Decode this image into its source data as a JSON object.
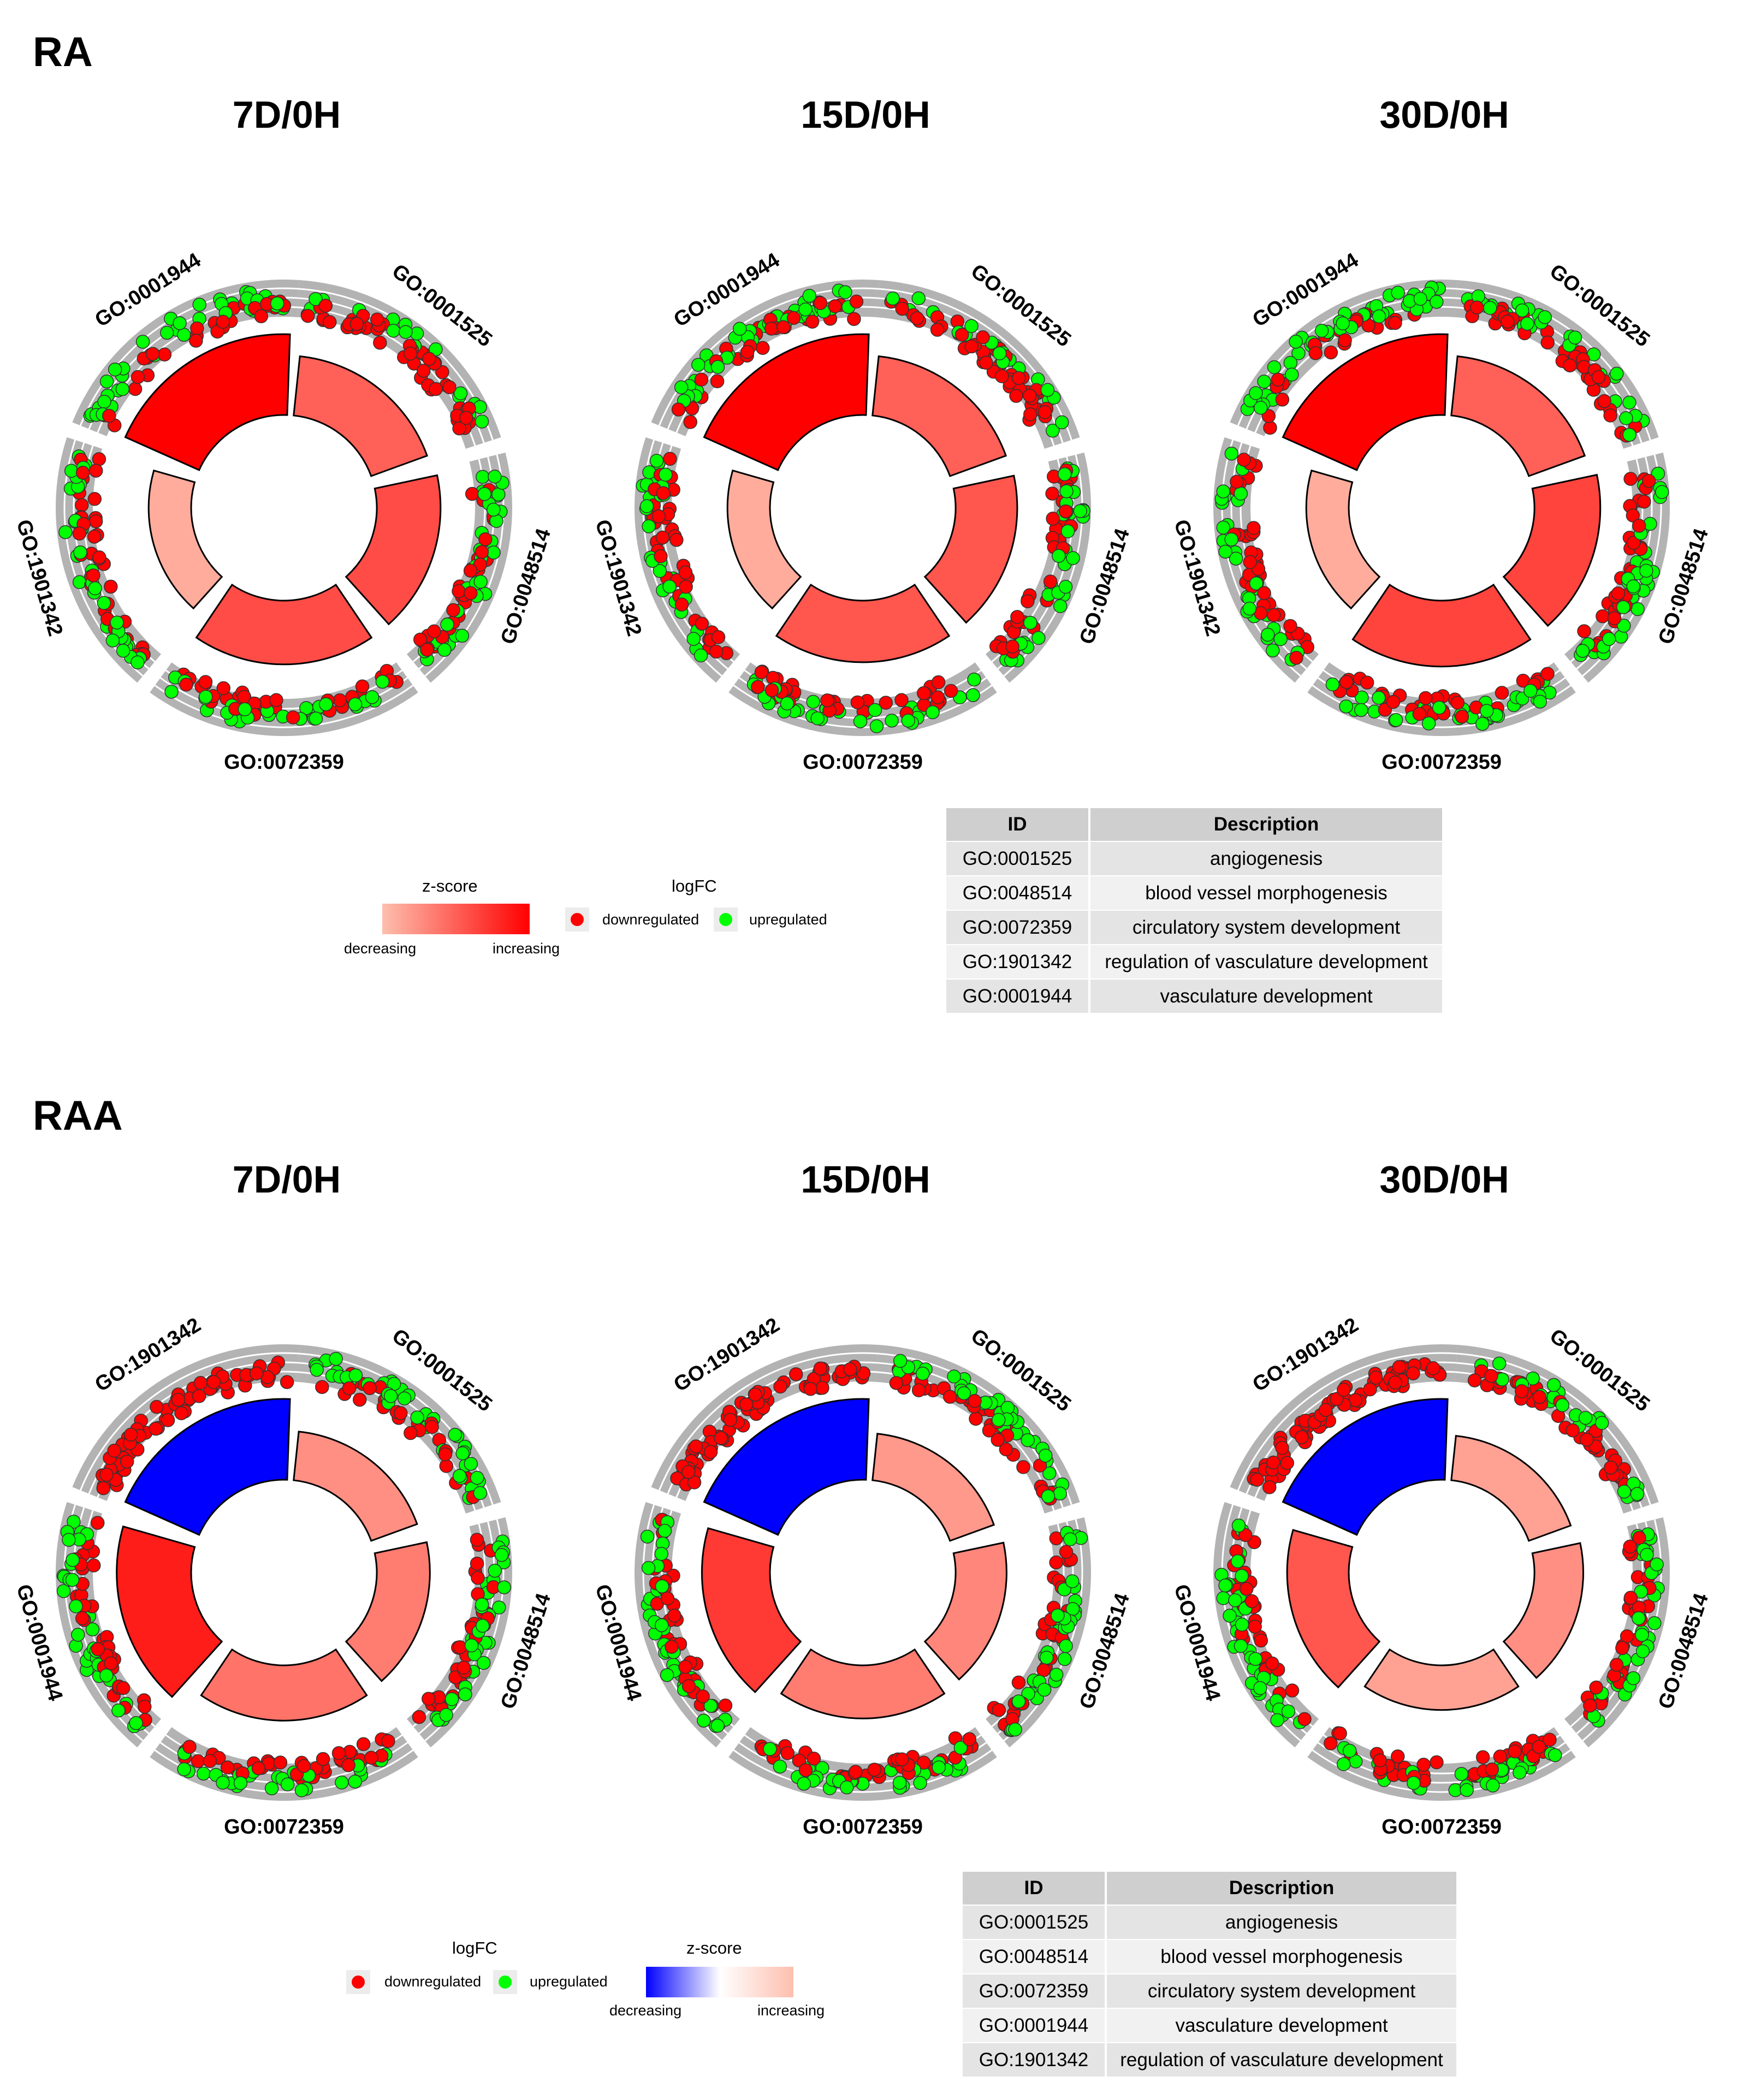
{
  "colors": {
    "down": "#ff0000",
    "up": "#00ff00",
    "track": "#b3b3b3",
    "zmax": "#ff0000",
    "zmid": "#fdbfae",
    "zmin": "#0000ff"
  },
  "sections": [
    {
      "label": "RA"
    },
    {
      "label": "RAA"
    }
  ],
  "legend_ra": {
    "zscore_title": "z-score",
    "decreasing": "decreasing",
    "increasing": "increasing",
    "logfc_title": "logFC",
    "down": "downregulated",
    "up": "upregulated"
  },
  "legend_raa": {
    "zscore_title": "z-score",
    "decreasing": "decreasing",
    "increasing": "increasing",
    "logfc_title": "logFC",
    "down": "downregulated",
    "up": "upregulated"
  },
  "table_ra": {
    "headers": [
      "ID",
      "Description"
    ],
    "rows": [
      [
        "GO:0001525",
        "angiogenesis"
      ],
      [
        "GO:0048514",
        "blood vessel morphogenesis"
      ],
      [
        "GO:0072359",
        "circulatory system development"
      ],
      [
        "GO:1901342",
        "regulation of vasculature development"
      ],
      [
        "GO:0001944",
        "vasculature development"
      ]
    ]
  },
  "table_raa": {
    "headers": [
      "ID",
      "Description"
    ],
    "rows": [
      [
        "GO:0001525",
        "angiogenesis"
      ],
      [
        "GO:0048514",
        "blood vessel morphogenesis"
      ],
      [
        "GO:0072359",
        "circulatory system development"
      ],
      [
        "GO:0001944",
        "vasculature development"
      ],
      [
        "GO:1901342",
        "regulation of vasculature development"
      ]
    ]
  },
  "chart_data": [
    {
      "type": "circle",
      "group": "RA",
      "title": "7D/0H",
      "terms": [
        "GO:0001525",
        "GO:0048514",
        "GO:0072359",
        "GO:1901342",
        "GO:0001944"
      ],
      "zscore": [
        0.5,
        0.6,
        0.6,
        0.1,
        1.0
      ],
      "up_fraction": [
        0.35,
        0.45,
        0.55,
        0.5,
        0.55
      ]
    },
    {
      "type": "circle",
      "group": "RA",
      "title": "15D/0H",
      "terms": [
        "GO:0001525",
        "GO:0048514",
        "GO:0072359",
        "GO:1901342",
        "GO:0001944"
      ],
      "zscore": [
        0.5,
        0.55,
        0.55,
        0.1,
        1.0
      ],
      "up_fraction": [
        0.35,
        0.4,
        0.5,
        0.45,
        0.5
      ]
    },
    {
      "type": "circle",
      "group": "RA",
      "title": "30D/0H",
      "terms": [
        "GO:0001525",
        "GO:0048514",
        "GO:0072359",
        "GO:1901342",
        "GO:0001944"
      ],
      "zscore": [
        0.5,
        0.65,
        0.65,
        0.1,
        1.0
      ],
      "up_fraction": [
        0.4,
        0.5,
        0.55,
        0.45,
        0.6
      ]
    },
    {
      "type": "circle",
      "group": "RAA",
      "title": "7D/0H",
      "terms": [
        "GO:0001525",
        "GO:0048514",
        "GO:0072359",
        "GO:0001944",
        "GO:1901342"
      ],
      "zscore": [
        0.25,
        0.35,
        0.4,
        0.85,
        -1.0
      ],
      "up_fraction": [
        0.55,
        0.5,
        0.5,
        0.5,
        0.0
      ]
    },
    {
      "type": "circle",
      "group": "RAA",
      "title": "15D/0H",
      "terms": [
        "GO:0001525",
        "GO:0048514",
        "GO:0072359",
        "GO:0001944",
        "GO:1901342"
      ],
      "zscore": [
        0.2,
        0.3,
        0.35,
        0.7,
        -1.0
      ],
      "up_fraction": [
        0.55,
        0.5,
        0.45,
        0.55,
        0.0
      ]
    },
    {
      "type": "circle",
      "group": "RAA",
      "title": "30D/0H",
      "terms": [
        "GO:0001525",
        "GO:0048514",
        "GO:0072359",
        "GO:0001944",
        "GO:1901342"
      ],
      "zscore": [
        0.15,
        0.25,
        0.15,
        0.55,
        -1.0
      ],
      "up_fraction": [
        0.5,
        0.55,
        0.5,
        0.55,
        0.0
      ]
    }
  ]
}
